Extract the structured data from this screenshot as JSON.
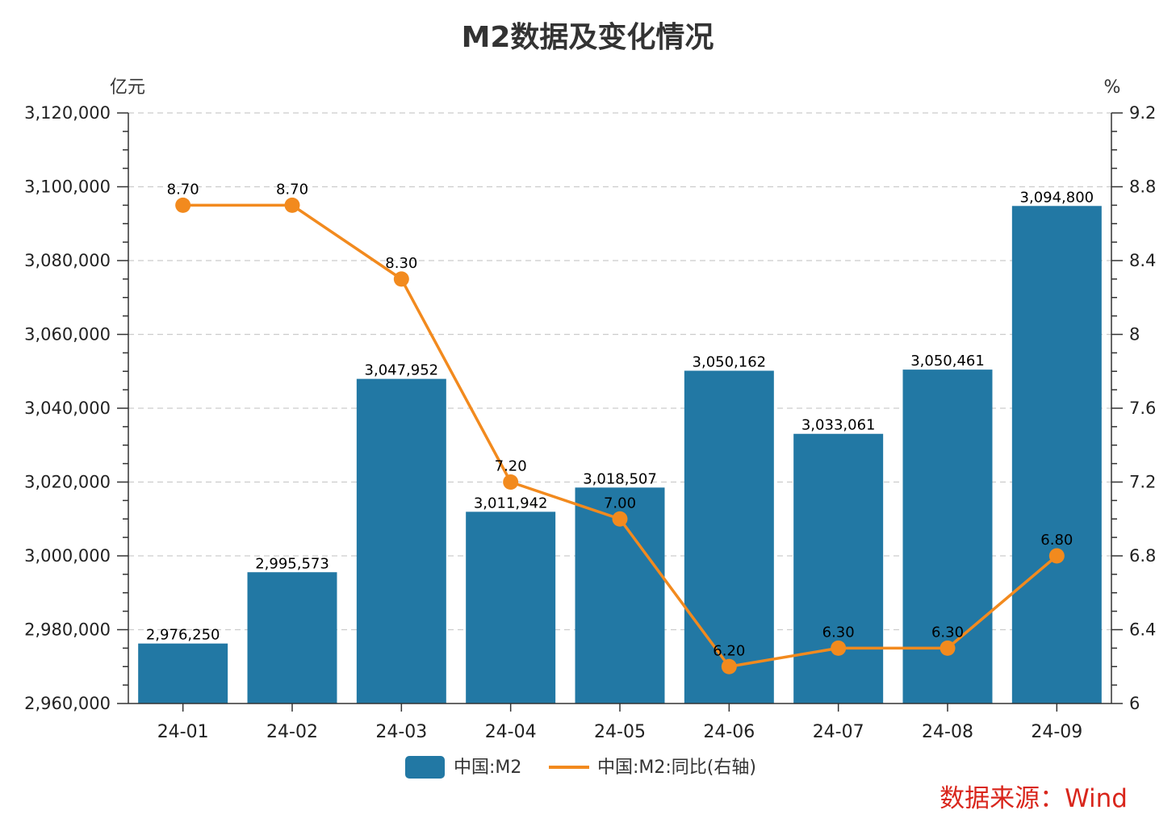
{
  "title": "M2数据及变化情况",
  "source_text": "数据来源：Wind",
  "chart_data": {
    "type": "bar",
    "title": "M2数据及变化情况",
    "categories": [
      "24-01",
      "24-02",
      "24-03",
      "24-04",
      "24-05",
      "24-06",
      "24-07",
      "24-08",
      "24-09"
    ],
    "y_left": {
      "unit": "亿元",
      "min": 2960000,
      "max": 3120000,
      "ticks": [
        "2,960,000",
        "2,980,000",
        "3,000,000",
        "3,020,000",
        "3,040,000",
        "3,060,000",
        "3,080,000",
        "3,100,000",
        "3,120,000"
      ]
    },
    "y_right": {
      "unit": "%",
      "min": 6,
      "max": 9.2,
      "ticks": [
        "6",
        "6.4",
        "6.8",
        "7.2",
        "7.6",
        "8",
        "8.4",
        "8.8",
        "9.2"
      ]
    },
    "series": [
      {
        "name": "中国:M2",
        "type": "bar",
        "axis": "left",
        "color": "#2278a4",
        "values": [
          2976250,
          2995573,
          3047952,
          3011942,
          3018507,
          3050162,
          3033061,
          3050461,
          3094800
        ],
        "labels": [
          "2,976,250",
          "2,995,573",
          "3,047,952",
          "3,011,942",
          "3,018,507",
          "3,050,162",
          "3,033,061",
          "3,050,461",
          "3,094,800"
        ]
      },
      {
        "name": "中国:M2:同比(右轴)",
        "type": "line",
        "axis": "right",
        "color": "#f28a1e",
        "values": [
          8.7,
          8.7,
          8.3,
          7.2,
          7.0,
          6.2,
          6.3,
          6.3,
          6.8
        ],
        "labels": [
          "8.70",
          "8.70",
          "8.30",
          "7.20",
          "7.00",
          "6.20",
          "6.30",
          "6.30",
          "6.80"
        ]
      }
    ],
    "grid": true,
    "legend_position": "bottom"
  }
}
